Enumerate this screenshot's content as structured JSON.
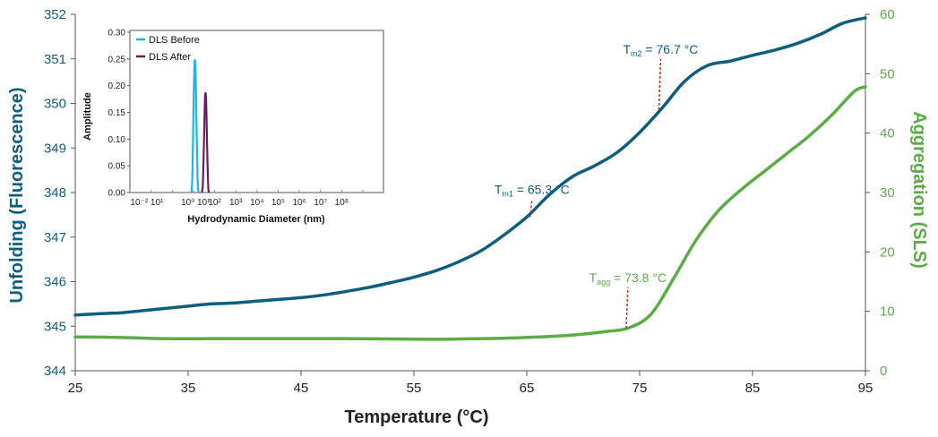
{
  "colors": {
    "fluorescence": "#0f5e80",
    "sls": "#5aad45",
    "tm_marker": "#c0392b",
    "dls_before": "#1fb5e6",
    "dls_after": "#6a1f5a",
    "axis": "#555555",
    "text_dark": "#222222"
  },
  "chart_data": [
    {
      "type": "line",
      "title": "",
      "xlabel": "Temperature (°C)",
      "ylabel": "Unfolding (Fluorescence)",
      "y2label": "Aggregation (SLS)",
      "xlim": [
        25,
        95
      ],
      "ylim": [
        344,
        352
      ],
      "y2lim": [
        0,
        60
      ],
      "x_ticks": [
        "25",
        "35",
        "45",
        "55",
        "65",
        "75",
        "85",
        "95"
      ],
      "y_ticks": [
        "344",
        "345",
        "346",
        "347",
        "348",
        "349",
        "350",
        "351",
        "352"
      ],
      "y2_ticks": [
        "0",
        "10",
        "20",
        "30",
        "40",
        "50",
        "60"
      ],
      "legend": "none",
      "grid": false,
      "series": [
        {
          "axis": "left",
          "color_key": "fluorescence",
          "x": [
            25,
            27,
            29,
            31,
            33,
            35,
            37,
            39,
            41,
            43,
            45,
            47,
            49,
            51,
            53,
            55,
            57,
            59,
            61,
            63,
            65,
            67,
            69,
            71,
            73,
            75,
            77,
            79,
            81,
            83,
            85,
            87,
            89,
            91,
            93,
            95
          ],
          "y": [
            345.25,
            345.28,
            345.3,
            345.35,
            345.4,
            345.45,
            345.5,
            345.52,
            345.56,
            345.6,
            345.64,
            345.7,
            345.78,
            345.87,
            345.98,
            346.1,
            346.25,
            346.45,
            346.7,
            347.05,
            347.45,
            347.95,
            348.35,
            348.6,
            348.9,
            349.35,
            349.9,
            350.5,
            350.85,
            350.95,
            351.08,
            351.2,
            351.35,
            351.55,
            351.8,
            351.92
          ]
        },
        {
          "axis": "right",
          "color_key": "sls",
          "x": [
            25,
            29,
            33,
            37,
            41,
            45,
            49,
            53,
            57,
            61,
            65,
            69,
            72,
            74,
            76,
            78,
            80,
            82,
            84,
            86,
            88,
            90,
            92,
            94,
            95
          ],
          "y": [
            5.7,
            5.6,
            5.4,
            5.4,
            5.4,
            5.4,
            5.4,
            5.35,
            5.3,
            5.4,
            5.6,
            6.0,
            6.6,
            7.2,
            9.5,
            15.5,
            22.0,
            27.0,
            30.5,
            33.5,
            36.5,
            39.5,
            43.0,
            47.0,
            47.8
          ]
        }
      ],
      "annotations": [
        {
          "label_main": "T",
          "label_sub": "m1",
          "label_value": " = 65.3 °C",
          "x": 65.3,
          "axis": "left",
          "y_point": 347.45,
          "y_top": 347.85,
          "color_key": "fluorescence"
        },
        {
          "label_main": "T",
          "label_sub": "m2",
          "label_value": " = 76.7 °C",
          "x": 76.7,
          "axis": "left",
          "y_point": 349.85,
          "y_top": 351.0,
          "color_key": "fluorescence"
        },
        {
          "label_main": "T",
          "label_sub": "agg",
          "label_value": " = 73.8 °C",
          "x": 73.8,
          "axis": "right",
          "y_point": 7.1,
          "y_top": 14.0,
          "color_key": "sls"
        }
      ]
    },
    {
      "type": "line",
      "title": "",
      "xlabel": "Hydrodynamic Diameter (nm)",
      "ylabel": "Amplitude",
      "ylim": [
        0,
        0.3
      ],
      "x_scale": "log",
      "xlim_decades": [
        -2,
        9
      ],
      "x_tick_labels": [
        "10⁻² 10¹",
        "10⁰ 10¹",
        "10²",
        "10³",
        "10⁴",
        "10⁵",
        "10⁶",
        "10⁷",
        "10⁸"
      ],
      "y_ticks": [
        "0.00",
        "0.05",
        "0.10",
        "0.15",
        "0.20",
        "0.25",
        "0.30"
      ],
      "legend": "top-left",
      "series": [
        {
          "name": "DLS Before",
          "color_key": "dls_before",
          "x": [
            0.9,
            0.95,
            1.0,
            1.05,
            1.1,
            1.15,
            1.2,
            1.25
          ],
          "y": [
            0.0,
            0.03,
            0.15,
            0.24,
            0.23,
            0.12,
            0.02,
            0.0
          ]
        },
        {
          "name": "DLS After",
          "color_key": "dls_after",
          "x": [
            1.4,
            1.45,
            1.5,
            1.55,
            1.6,
            1.65,
            1.7,
            1.75
          ],
          "y": [
            0.0,
            0.02,
            0.1,
            0.18,
            0.17,
            0.08,
            0.01,
            0.0
          ]
        }
      ]
    }
  ]
}
